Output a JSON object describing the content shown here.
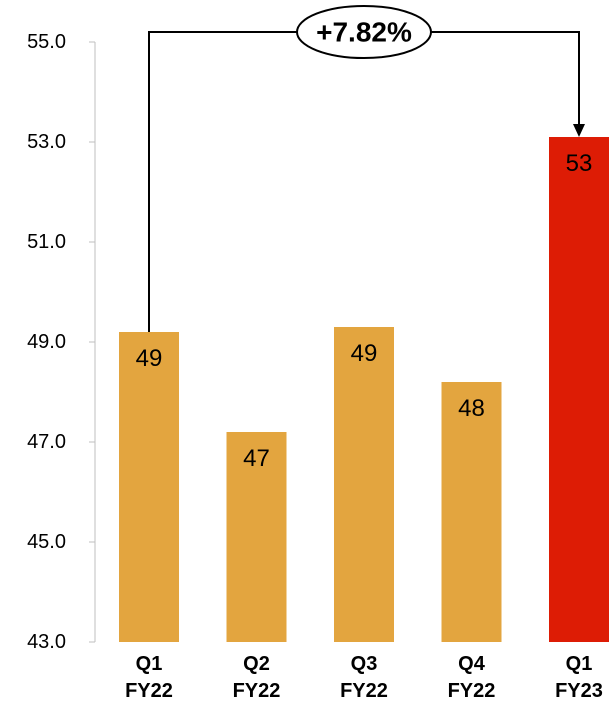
{
  "chart_data": {
    "type": "bar",
    "title": "",
    "xlabel": "",
    "ylabel": "",
    "categories": [
      [
        "Q1",
        "FY22"
      ],
      [
        "Q2",
        "FY22"
      ],
      [
        "Q3",
        "FY22"
      ],
      [
        "Q4",
        "FY22"
      ],
      [
        "Q1",
        "FY23"
      ]
    ],
    "values": [
      49.2,
      47.2,
      49.3,
      48.2,
      53.1
    ],
    "data_labels": [
      "49",
      "47",
      "49",
      "48",
      "53"
    ],
    "bar_colors": [
      "#E3A53F",
      "#E3A53F",
      "#E3A53F",
      "#E3A53F",
      "#DD1C05"
    ],
    "ylim": [
      43.0,
      55.0
    ],
    "yticks": [
      "43.0",
      "45.0",
      "47.0",
      "49.0",
      "51.0",
      "53.0",
      "55.0"
    ],
    "grid": false,
    "legend": "none",
    "annotation": {
      "text": "+7.82%",
      "from_category": 0,
      "to_category": 4,
      "shape": "ellipse",
      "arrow_color": "#000000"
    }
  }
}
